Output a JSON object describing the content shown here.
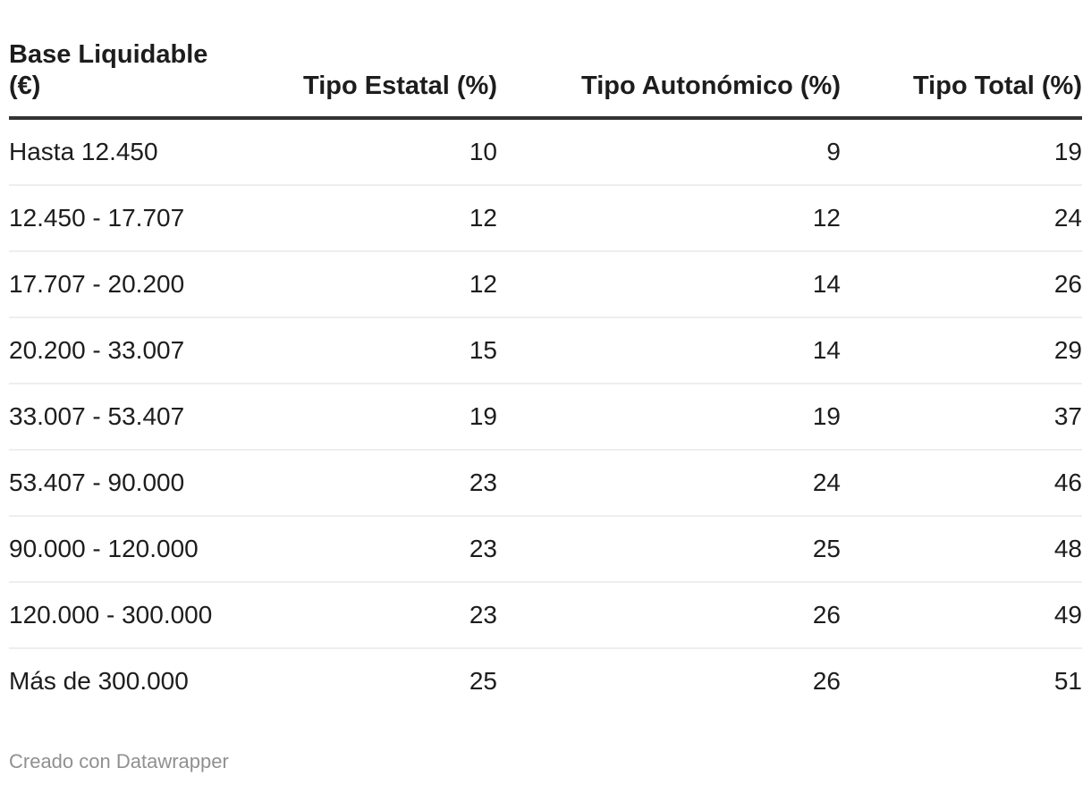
{
  "chart_data": {
    "type": "table",
    "columns": [
      "Base Liquidable (€)",
      "Tipo Estatal (%)",
      "Tipo Autonómico (%)",
      "Tipo Total (%)"
    ],
    "column_alignments": [
      "left",
      "right",
      "right",
      "right"
    ],
    "rows": [
      [
        "Hasta 12.450",
        10,
        9,
        19
      ],
      [
        "12.450 - 17.707",
        12,
        12,
        24
      ],
      [
        "17.707 - 20.200",
        12,
        14,
        26
      ],
      [
        "20.200 - 33.007",
        15,
        14,
        29
      ],
      [
        "33.007 - 53.407",
        19,
        19,
        37
      ],
      [
        "53.407 - 90.000",
        23,
        24,
        46
      ],
      [
        "90.000 - 120.000",
        23,
        25,
        48
      ],
      [
        "120.000 - 300.000",
        23,
        26,
        49
      ],
      [
        "Más de 300.000",
        25,
        26,
        51
      ]
    ],
    "layout_hints": {
      "header_rule_color": "#333333",
      "row_separator_color": "#eeeeee",
      "first_column_header_wraps_to_two_lines": true
    }
  },
  "footer": {
    "credit": "Creado con Datawrapper"
  },
  "colors": {
    "background": "#ffffff",
    "text": "#1d1d1d",
    "header_border": "#333333",
    "row_border": "#eeeeee",
    "credit_text": "#909090"
  }
}
